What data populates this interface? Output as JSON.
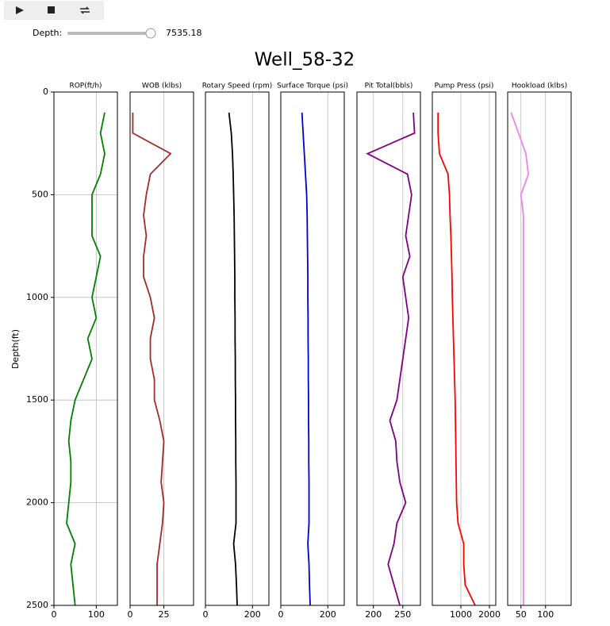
{
  "controls": {
    "depth_label": "Depth:",
    "depth_value": "7535.18"
  },
  "chart_data": {
    "type": "welllog",
    "title": "Well_58-32",
    "y_label": "Depth(ft)",
    "ylim": [
      2500,
      0
    ],
    "yticks": [
      0,
      500,
      1000,
      1500,
      2000,
      2500
    ],
    "depth": [
      100,
      200,
      300,
      400,
      500,
      600,
      700,
      800,
      900,
      1000,
      1100,
      1200,
      1300,
      1400,
      1500,
      1600,
      1700,
      1800,
      1900,
      2000,
      2100,
      2200,
      2300,
      2400,
      2500
    ],
    "series": [
      {
        "name": "ROP(ft/h)",
        "color": "#008000",
        "xlim": [
          0,
          150
        ],
        "xticks": [
          0,
          100
        ],
        "ygrid": true,
        "values": [
          120,
          110,
          120,
          110,
          90,
          90,
          90,
          110,
          100,
          90,
          100,
          80,
          90,
          70,
          50,
          40,
          35,
          40,
          40,
          35,
          30,
          50,
          40,
          45,
          50
        ]
      },
      {
        "name": "WOB (klbs)",
        "color": "#a52a2a",
        "xlim": [
          0,
          47
        ],
        "xticks": [
          0,
          25
        ],
        "ygrid": false,
        "values": [
          2,
          2,
          30,
          15,
          12,
          10,
          12,
          10,
          10,
          15,
          18,
          15,
          15,
          18,
          18,
          22,
          25,
          24,
          23,
          25,
          24,
          22,
          20,
          20,
          20
        ]
      },
      {
        "name": "Rotary Speed (rpm)",
        "color": "#000000",
        "xlim": [
          0,
          270
        ],
        "xticks": [
          0,
          200
        ],
        "ygrid": false,
        "values": [
          100,
          110,
          115,
          118,
          120,
          122,
          123,
          124,
          125,
          125,
          126,
          126,
          127,
          127,
          128,
          128,
          129,
          129,
          130,
          130,
          130,
          120,
          128,
          132,
          135
        ]
      },
      {
        "name": "Surface Torque (psi)",
        "color": "#0000cd",
        "xlim": [
          0,
          270
        ],
        "xticks": [
          0,
          200
        ],
        "ygrid": false,
        "values": [
          90,
          95,
          100,
          105,
          110,
          112,
          113,
          114,
          115,
          115,
          116,
          116,
          117,
          117,
          118,
          118,
          119,
          119,
          120,
          120,
          120,
          115,
          120,
          122,
          125
        ]
      },
      {
        "name": "Pit Total(bbls)",
        "color": "#800080",
        "xlim": [
          172,
          280
        ],
        "xticks": [
          200,
          250
        ],
        "ygrid": false,
        "values": [
          268,
          270,
          190,
          258,
          265,
          260,
          255,
          262,
          250,
          255,
          260,
          255,
          250,
          245,
          240,
          228,
          238,
          240,
          245,
          255,
          240,
          235,
          225,
          235,
          245
        ]
      },
      {
        "name": "Pump Press (psi)",
        "color": "#ff0000",
        "xlim": [
          0,
          2222
        ],
        "xticks": [
          1000,
          2000
        ],
        "ygrid": false,
        "values": [
          200,
          200,
          250,
          550,
          600,
          620,
          650,
          670,
          690,
          700,
          720,
          740,
          760,
          780,
          800,
          810,
          820,
          830,
          840,
          850,
          900,
          1100,
          1100,
          1150,
          1500
        ]
      },
      {
        "name": "Hookload (klbs)",
        "color": "#ee82ee",
        "xlim": [
          23,
          152
        ],
        "xticks": [
          50,
          100
        ],
        "ygrid": false,
        "values": [
          30,
          45,
          60,
          65,
          50,
          55,
          55,
          55,
          55,
          55,
          55,
          55,
          55,
          55,
          55,
          55,
          55,
          55,
          55,
          55,
          55,
          55,
          55,
          55,
          55
        ]
      }
    ]
  }
}
